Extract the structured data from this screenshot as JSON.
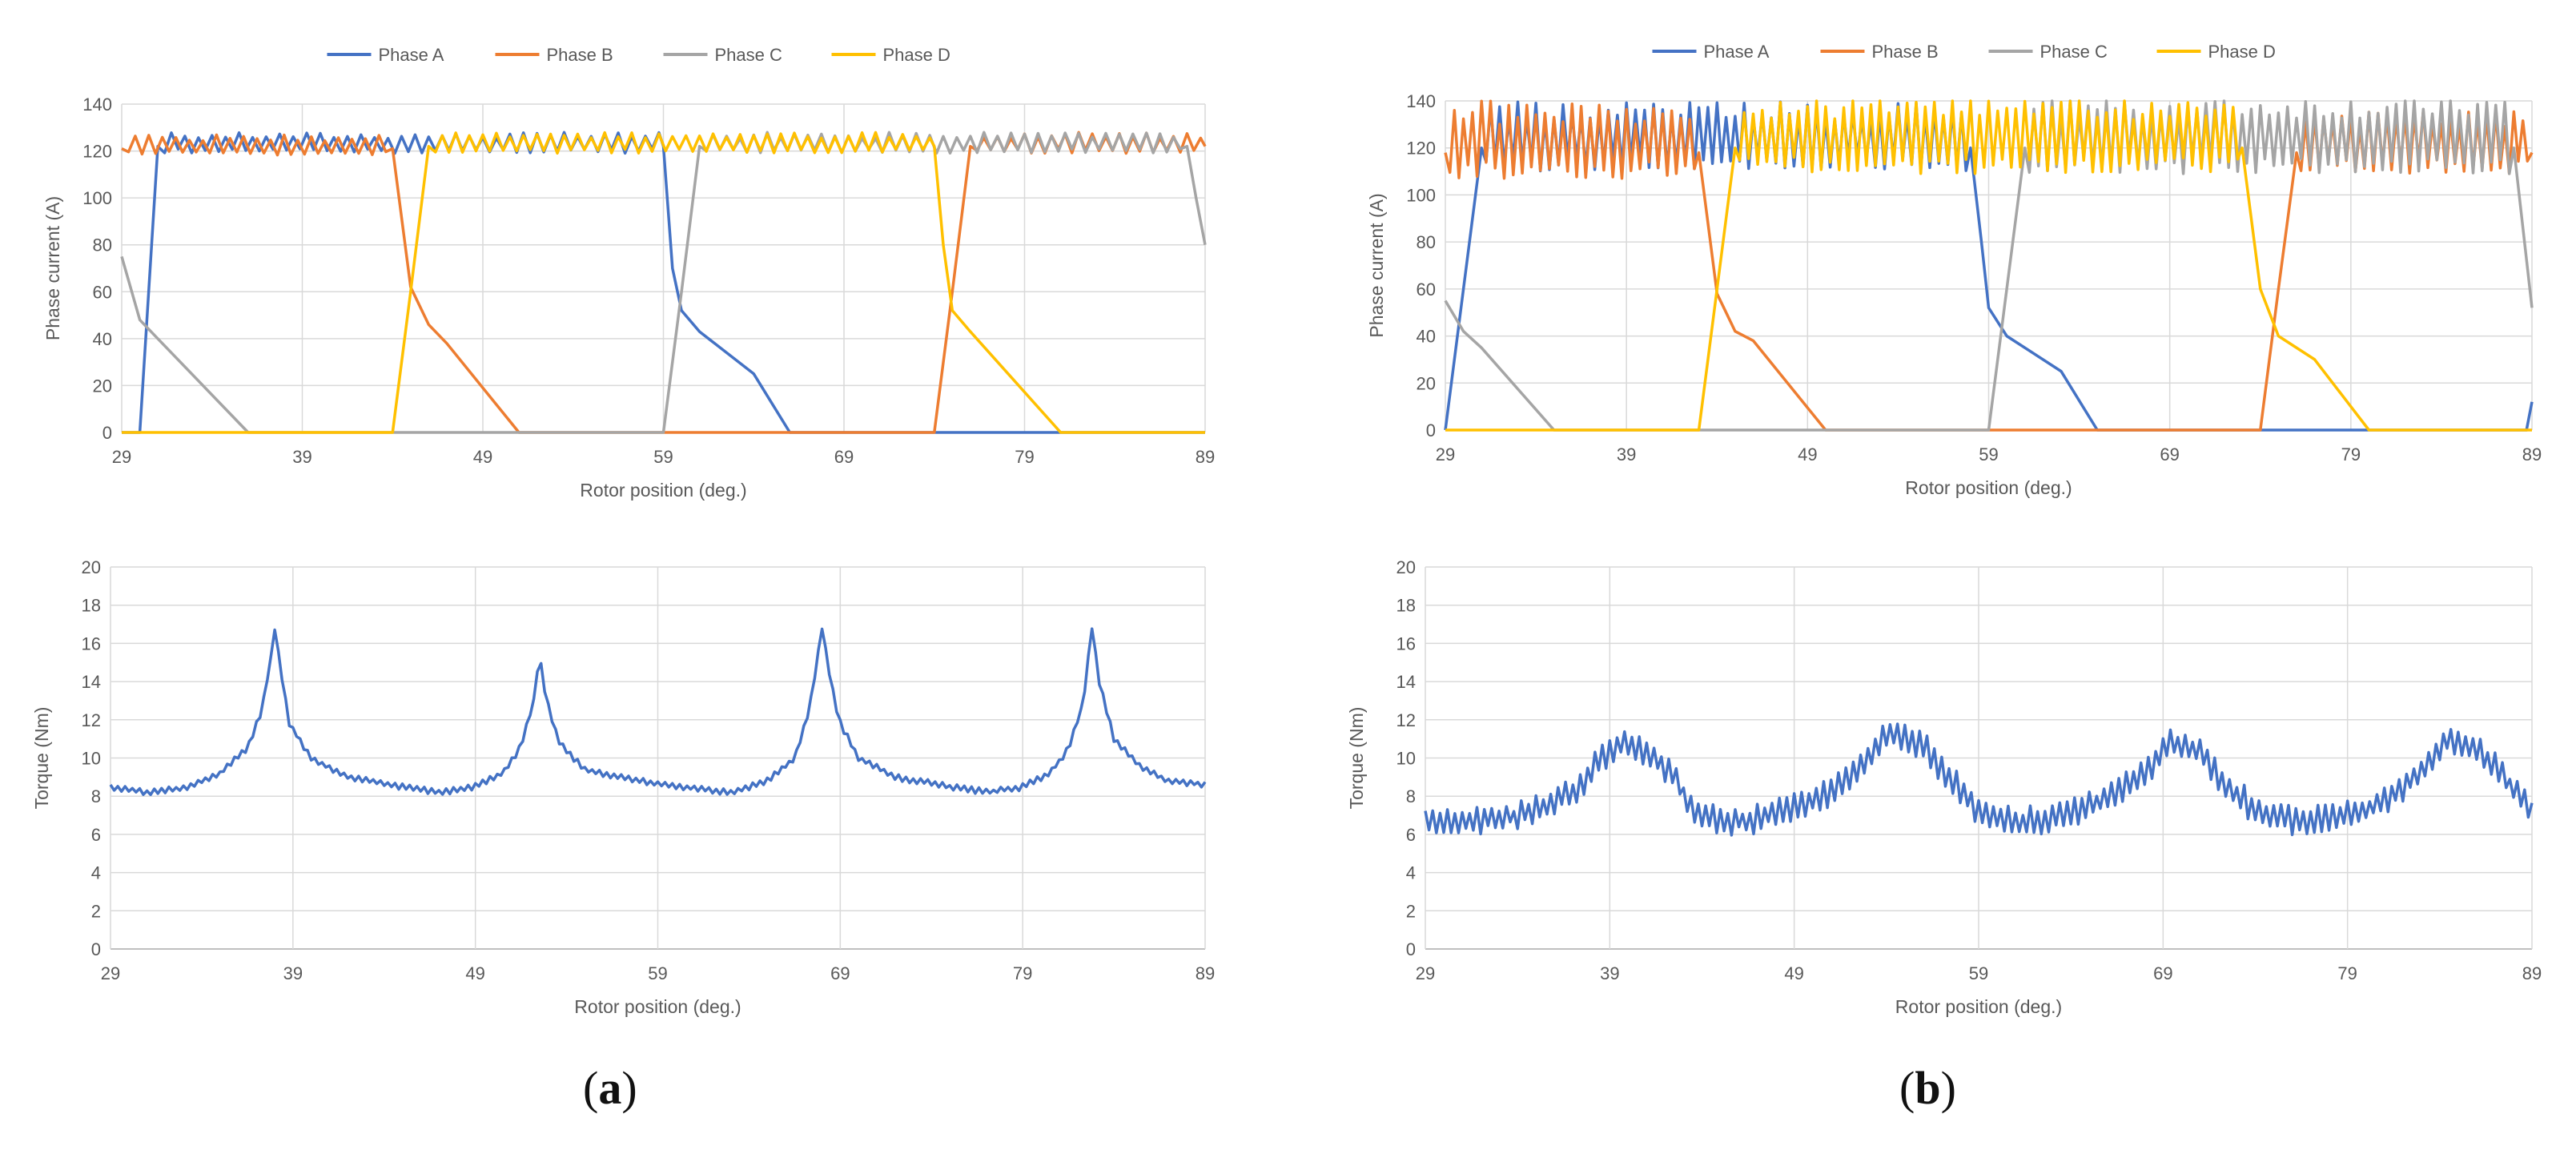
{
  "panels": [
    {
      "label_open": "(",
      "label_letter": "a",
      "label_close": ")"
    },
    {
      "label_open": "(",
      "label_letter": "b",
      "label_close": ")"
    }
  ],
  "colors": {
    "phase_a": "#4472C4",
    "phase_b": "#ED7D31",
    "phase_c": "#A5A5A5",
    "phase_d": "#FFC000",
    "grid": "#D9D9D9",
    "axis": "#BFBFBF",
    "text": "#595959"
  },
  "chart_data": [
    {
      "id": "a-current",
      "type": "line",
      "ylabel": "Phase current (A)",
      "xlabel": "Rotor position (deg.)",
      "xlim": [
        29,
        89
      ],
      "ylim": [
        0,
        140
      ],
      "xticks": [
        29,
        39,
        49,
        59,
        69,
        79,
        89
      ],
      "yticks": [
        0,
        20,
        40,
        60,
        80,
        100,
        120,
        140
      ],
      "legend": "top-center",
      "series": [
        {
          "name": "Phase A",
          "color": "#4472C4",
          "points": [
            [
              29,
              0
            ],
            [
              30,
              0
            ],
            [
              31,
              122
            ],
            [
              59,
              122
            ],
            [
              59.5,
              70
            ],
            [
              60,
              52
            ],
            [
              61,
              43
            ],
            [
              64,
              25
            ],
            [
              66,
              0
            ],
            [
              89,
              0
            ]
          ],
          "ripple": [
            [
              31,
              59,
              122,
              6,
              0.75
            ]
          ]
        },
        {
          "name": "Phase B",
          "color": "#ED7D31",
          "points": [
            [
              29,
              121
            ],
            [
              44,
              121
            ],
            [
              45,
              62
            ],
            [
              46,
              46
            ],
            [
              47,
              38
            ],
            [
              51,
              0
            ],
            [
              74,
              0
            ],
            [
              75,
              60
            ],
            [
              76,
              122
            ],
            [
              89,
              122
            ]
          ],
          "ripple": [
            [
              29,
              44,
              121,
              6,
              0.75
            ],
            [
              76,
              89,
              122,
              6,
              0.75
            ]
          ]
        },
        {
          "name": "Phase C",
          "color": "#A5A5A5",
          "points": [
            [
              29,
              75
            ],
            [
              30,
              48
            ],
            [
              31,
              40
            ],
            [
              36,
              0
            ],
            [
              59,
              0
            ],
            [
              60,
              60
            ],
            [
              61,
              122
            ],
            [
              88,
              122
            ],
            [
              88.5,
              100
            ],
            [
              89,
              80
            ]
          ],
          "ripple": [
            [
              61,
              88,
              122,
              6,
              0.75
            ]
          ]
        },
        {
          "name": "Phase D",
          "color": "#FFC000",
          "points": [
            [
              29,
              0
            ],
            [
              44,
              0
            ],
            [
              45,
              60
            ],
            [
              46,
              122
            ],
            [
              74,
              122
            ],
            [
              74.5,
              80
            ],
            [
              75,
              52
            ],
            [
              76,
              43
            ],
            [
              81,
              0
            ],
            [
              89,
              0
            ]
          ],
          "ripple": [
            [
              46,
              74,
              122,
              6,
              0.75
            ]
          ]
        }
      ]
    },
    {
      "id": "a-torque",
      "type": "line",
      "ylabel": "Torque (Nm)",
      "xlabel": "Rotor position (deg.)",
      "xlim": [
        29,
        89
      ],
      "ylim": [
        0,
        20
      ],
      "xticks": [
        29,
        39,
        49,
        59,
        69,
        79,
        89
      ],
      "yticks": [
        0,
        2,
        4,
        6,
        8,
        10,
        12,
        14,
        16,
        18,
        20
      ],
      "series": [
        {
          "name": "Torque",
          "color": "#4472C4",
          "points": [
            [
              29,
              8.5
            ],
            [
              31,
              8.2
            ],
            [
              33,
              8.4
            ],
            [
              35,
              9.2
            ],
            [
              36.5,
              10.5
            ],
            [
              37.3,
              12.5
            ],
            [
              37.8,
              15.3
            ],
            [
              38,
              16.8
            ],
            [
              38.3,
              14.8
            ],
            [
              38.8,
              11.8
            ],
            [
              40,
              10
            ],
            [
              42,
              9
            ],
            [
              45,
              8.5
            ],
            [
              47,
              8.2
            ],
            [
              49,
              8.5
            ],
            [
              50.5,
              9.2
            ],
            [
              51.5,
              10.6
            ],
            [
              52.2,
              13
            ],
            [
              52.5,
              15.4
            ],
            [
              52.9,
              13
            ],
            [
              53.6,
              10.8
            ],
            [
              55,
              9.4
            ],
            [
              58,
              8.8
            ],
            [
              61,
              8.4
            ],
            [
              63,
              8.2
            ],
            [
              65,
              8.8
            ],
            [
              66.5,
              10
            ],
            [
              67.3,
              12.5
            ],
            [
              67.8,
              15.5
            ],
            [
              68,
              16.9
            ],
            [
              68.3,
              15
            ],
            [
              68.9,
              12
            ],
            [
              70,
              10
            ],
            [
              72,
              9
            ],
            [
              75,
              8.5
            ],
            [
              77,
              8.2
            ],
            [
              79,
              8.5
            ],
            [
              80.5,
              9.2
            ],
            [
              81.5,
              10.5
            ],
            [
              82.3,
              12.8
            ],
            [
              82.8,
              16.9
            ],
            [
              83.2,
              14
            ],
            [
              84,
              11
            ],
            [
              85.5,
              9.5
            ],
            [
              87,
              8.8
            ],
            [
              89,
              8.6
            ]
          ],
          "noise": 0.12
        }
      ]
    },
    {
      "id": "b-current",
      "type": "line",
      "ylabel": "Phase current (A)",
      "xlabel": "Rotor position (deg.)",
      "xlim": [
        29,
        89
      ],
      "ylim": [
        0,
        140
      ],
      "xticks": [
        29,
        39,
        49,
        59,
        69,
        79,
        89
      ],
      "yticks": [
        0,
        20,
        40,
        60,
        80,
        100,
        120,
        140
      ],
      "legend": "top-center",
      "series": [
        {
          "name": "Phase A",
          "color": "#4472C4",
          "points": [
            [
              29,
              0
            ],
            [
              30,
              60
            ],
            [
              31,
              120
            ],
            [
              58,
              120
            ],
            [
              58.6,
              80
            ],
            [
              59,
              52
            ],
            [
              60,
              40
            ],
            [
              63,
              25
            ],
            [
              65,
              0
            ],
            [
              88.7,
              0
            ],
            [
              89,
              12
            ]
          ],
          "ripple": [
            [
              31,
              58,
              120,
              20,
              0.5
            ]
          ]
        },
        {
          "name": "Phase B",
          "color": "#ED7D31",
          "points": [
            [
              29,
              118
            ],
            [
              43,
              118
            ],
            [
              44,
              58
            ],
            [
              45,
              42
            ],
            [
              46,
              38
            ],
            [
              50,
              0
            ],
            [
              74,
              0
            ],
            [
              75,
              60
            ],
            [
              76,
              118
            ],
            [
              89,
              118
            ]
          ],
          "ripple": [
            [
              29,
              43,
              118,
              22,
              0.5
            ],
            [
              76,
              89,
              118,
              18,
              0.5
            ]
          ]
        },
        {
          "name": "Phase C",
          "color": "#A5A5A5",
          "points": [
            [
              29,
              55
            ],
            [
              30,
              42
            ],
            [
              31,
              35
            ],
            [
              35,
              0
            ],
            [
              59,
              0
            ],
            [
              60,
              60
            ],
            [
              61,
              120
            ],
            [
              88,
              120
            ],
            [
              89,
              52
            ]
          ],
          "ripple": [
            [
              61,
              88,
              120,
              22,
              0.5
            ]
          ]
        },
        {
          "name": "Phase D",
          "color": "#FFC000",
          "points": [
            [
              29,
              0
            ],
            [
              43,
              0
            ],
            [
              44,
              60
            ],
            [
              45,
              120
            ],
            [
              73,
              120
            ],
            [
              74,
              60
            ],
            [
              75,
              40
            ],
            [
              77,
              30
            ],
            [
              80,
              0
            ],
            [
              89,
              0
            ]
          ],
          "ripple": [
            [
              45,
              73,
              120,
              22,
              0.5
            ]
          ]
        }
      ]
    },
    {
      "id": "b-torque",
      "type": "line",
      "ylabel": "Torque (Nm)",
      "xlabel": "Rotor position (deg.)",
      "xlim": [
        29,
        89
      ],
      "ylim": [
        0,
        20
      ],
      "xticks": [
        29,
        39,
        49,
        59,
        69,
        79,
        89
      ],
      "yticks": [
        0,
        2,
        4,
        6,
        8,
        10,
        12,
        14,
        16,
        18,
        20
      ],
      "series": [
        {
          "name": "Torque",
          "color": "#4472C4",
          "points": [
            [
              29,
              6.6
            ],
            [
              32,
              6.7
            ],
            [
              34,
              7
            ],
            [
              36,
              7.6
            ],
            [
              37.5,
              8.5
            ],
            [
              38.5,
              10
            ],
            [
              39.5,
              10.8
            ],
            [
              41,
              10.3
            ],
            [
              42.5,
              9
            ],
            [
              43.5,
              7.2
            ],
            [
              45,
              6.7
            ],
            [
              47,
              6.8
            ],
            [
              49,
              7.4
            ],
            [
              51,
              8.2
            ],
            [
              52.5,
              9.6
            ],
            [
              53.5,
              10.8
            ],
            [
              54.5,
              11.2
            ],
            [
              56,
              10.6
            ],
            [
              57.5,
              8.8
            ],
            [
              59,
              7.2
            ],
            [
              61,
              6.6
            ],
            [
              63,
              6.9
            ],
            [
              65,
              7.5
            ],
            [
              67,
              8.5
            ],
            [
              68.5,
              9.8
            ],
            [
              69.5,
              10.8
            ],
            [
              71,
              10.2
            ],
            [
              72.5,
              8.5
            ],
            [
              74,
              7.2
            ],
            [
              76,
              6.7
            ],
            [
              78,
              6.8
            ],
            [
              80,
              7.3
            ],
            [
              82,
              8.4
            ],
            [
              83.5,
              9.8
            ],
            [
              84.5,
              10.9
            ],
            [
              86,
              10.5
            ],
            [
              87.5,
              9
            ],
            [
              89,
              7.1
            ]
          ],
          "noise": 0.55
        }
      ]
    }
  ]
}
